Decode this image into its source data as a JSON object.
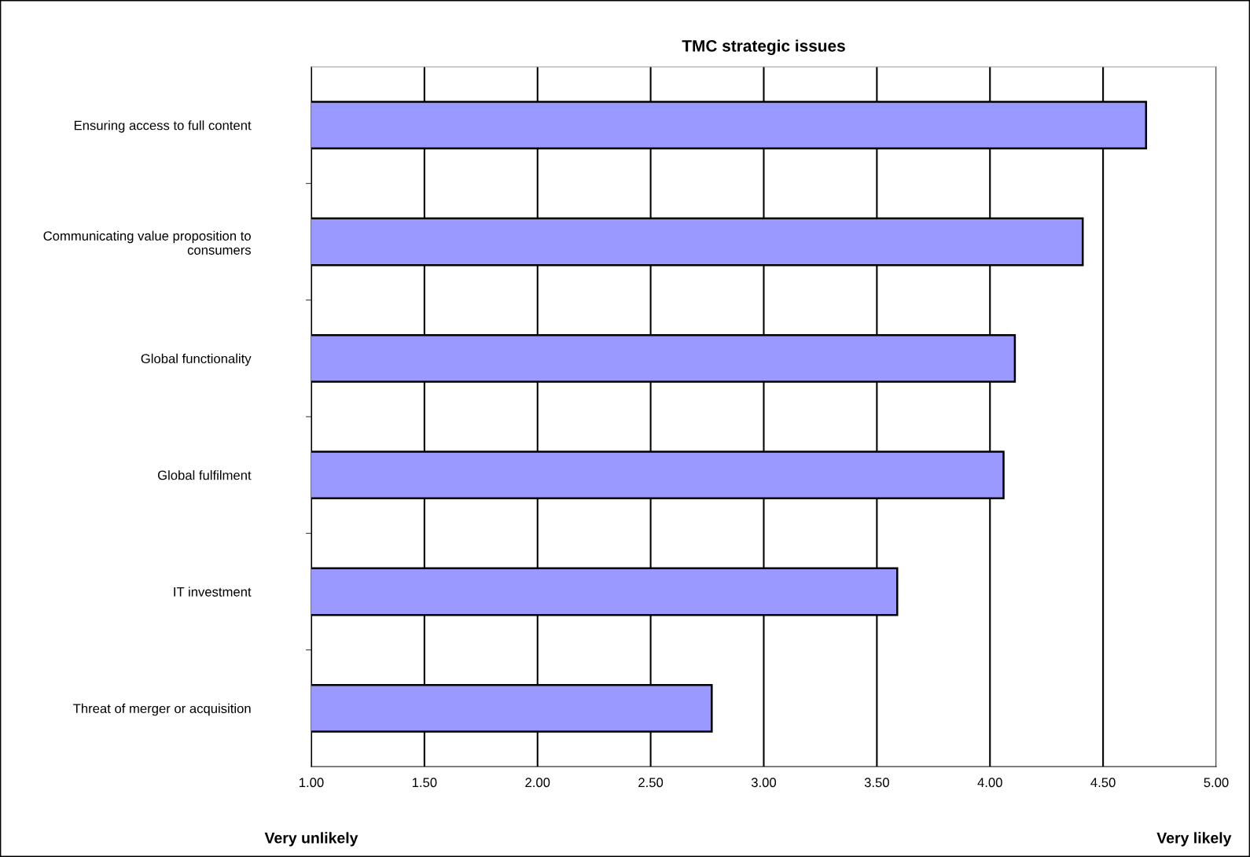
{
  "chart_data": {
    "type": "bar",
    "orientation": "horizontal",
    "title": "TMC strategic issues",
    "categories": [
      "Ensuring access to full content",
      "Communicating value proposition to consumers",
      "Global functionality",
      "Global fulfilment",
      "IT investment",
      "Threat of merger or acquisition"
    ],
    "values": [
      4.69,
      4.41,
      4.11,
      4.06,
      3.59,
      2.77
    ],
    "color": "#9999ff",
    "xlim": [
      1,
      5
    ],
    "xticks": [
      {
        "value": 1,
        "label": "1.00"
      },
      {
        "value": 1.5,
        "label": "1.50"
      },
      {
        "value": 2,
        "label": "2.00"
      },
      {
        "value": 2.5,
        "label": "2.50"
      },
      {
        "value": 3,
        "label": "3.00"
      },
      {
        "value": 3.5,
        "label": "3.50"
      },
      {
        "value": 4,
        "label": "4.00"
      },
      {
        "value": 4.5,
        "label": "4.50"
      },
      {
        "value": 5,
        "label": "5.00"
      }
    ],
    "grid": "x",
    "legend": false,
    "annotations": [
      "Very unlikely",
      "Very likely"
    ]
  }
}
